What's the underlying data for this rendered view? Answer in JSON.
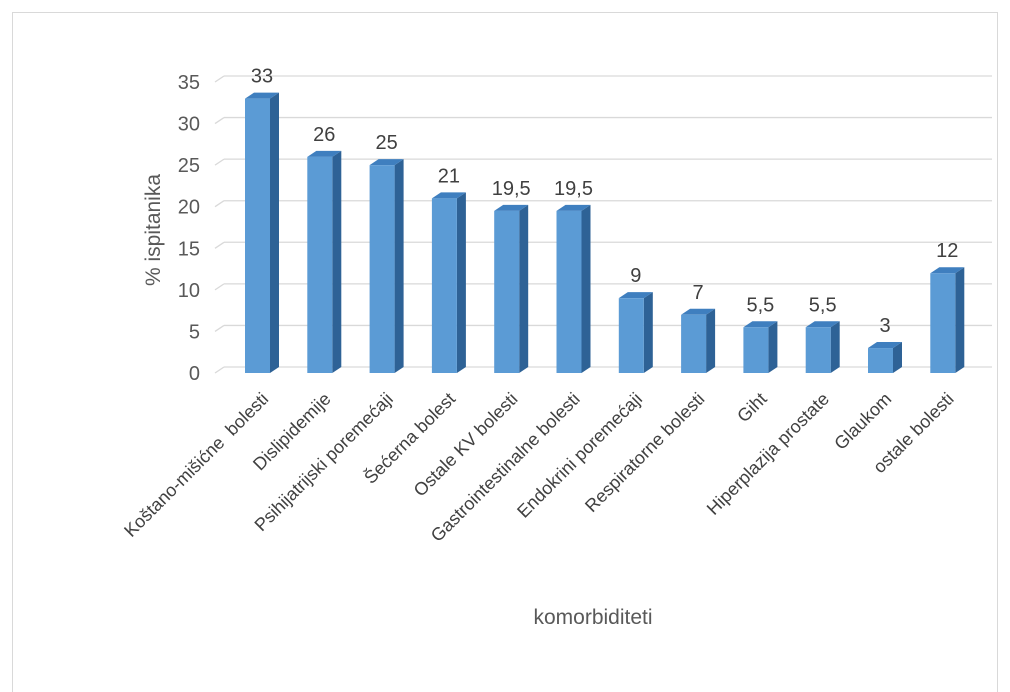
{
  "chart_data": {
    "type": "bar",
    "title": "",
    "xlabel": "komorbiditeti",
    "ylabel": "% ispitanika",
    "ylim": [
      0,
      35
    ],
    "yticks": [
      0,
      5,
      10,
      15,
      20,
      25,
      30,
      35
    ],
    "grid": true,
    "legend": "none",
    "categories": [
      "Koštano-mišićne  bolesti",
      "Dislipidemije",
      "Psihijatrijski poremećaji",
      "Šećerna bolest",
      "Ostale KV bolesti",
      "Gastrointestinalne bolesti",
      "Endokrini poremećaji",
      "Respiratorne bolesti",
      "Giht",
      "Hiperplazija prostate",
      "Glaukom",
      "ostale bolesti"
    ],
    "values": [
      33,
      26,
      25,
      21,
      19.5,
      19.5,
      9,
      7,
      5.5,
      5.5,
      3,
      12
    ],
    "value_labels": [
      "33",
      "26",
      "25",
      "21",
      "19,5",
      "19,5",
      "9",
      "7",
      "5,5",
      "5,5",
      "3",
      "12"
    ],
    "colors": {
      "bar_front": "#5b9bd5",
      "bar_side": "#2e6296",
      "bar_top": "#3f7fbf",
      "grid": "#d9d9d9"
    }
  }
}
